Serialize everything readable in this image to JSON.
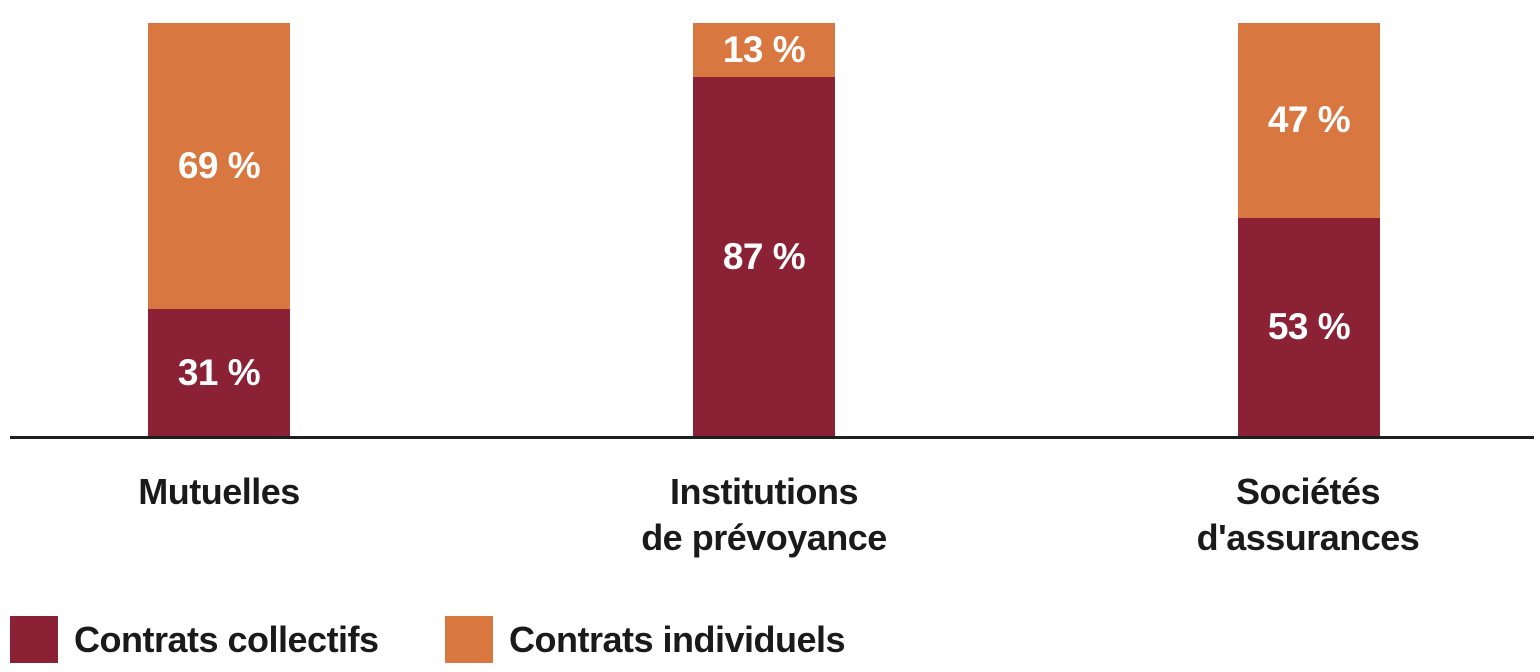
{
  "chart_data": {
    "type": "bar",
    "stacked": true,
    "orientation": "vertical",
    "unit": "%",
    "ylim": [
      0,
      100
    ],
    "grid": false,
    "legend_position": "bottom-left",
    "axis_line_color": "#1f1f1f",
    "text_color": "#1a1a1a",
    "categories": [
      [
        "Mutuelles"
      ],
      [
        "Institutions",
        "de prévoyance"
      ],
      [
        "Sociétés",
        "d'assurances"
      ]
    ],
    "series": [
      {
        "name": "Contrats collectifs",
        "color": "#8b2134",
        "values": [
          31,
          87,
          53
        ],
        "labels": [
          "31 %",
          "87 %",
          "53 %"
        ]
      },
      {
        "name": "Contrats individuels",
        "color": "#d8773f",
        "values": [
          69,
          13,
          47
        ],
        "labels": [
          "69 %",
          "13 %",
          "47 %"
        ]
      }
    ]
  }
}
